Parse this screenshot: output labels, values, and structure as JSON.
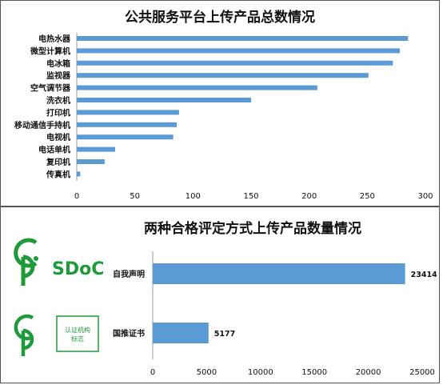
{
  "chart_data": [
    {
      "type": "bar",
      "orientation": "horizontal",
      "title": "公共服务平台上传产品总数情况",
      "categories": [
        "电热水器",
        "微型计算机",
        "电冰箱",
        "监视器",
        "空气调节器",
        "洗衣机",
        "打印机",
        "移动通信手持机",
        "电视机",
        "电话单机",
        "复印机",
        "传真机"
      ],
      "values": [
        285,
        278,
        272,
        251,
        207,
        150,
        88,
        86,
        83,
        33,
        24,
        3
      ],
      "xlim": [
        0,
        300
      ],
      "xticks": [
        0,
        50,
        100,
        150,
        200,
        250,
        300
      ],
      "color": "#5b9bd5",
      "grid": false
    },
    {
      "type": "bar",
      "orientation": "horizontal",
      "title": "两种合格评定方式上传产品数量情况",
      "categories": [
        "自我声明",
        "国推证书"
      ],
      "values": [
        23414,
        5177
      ],
      "data_labels": [
        "23414",
        "5177"
      ],
      "xlim": [
        0,
        25000
      ],
      "xticks": [
        0,
        5000,
        10000,
        15000,
        20000,
        25000
      ],
      "color": "#5b9bd5",
      "grid": false
    }
  ],
  "logos": {
    "sdoc_text": "SDoC",
    "cert_text_line1": "认证机构",
    "cert_text_line2": "标志",
    "color": "#1e9a3a"
  }
}
